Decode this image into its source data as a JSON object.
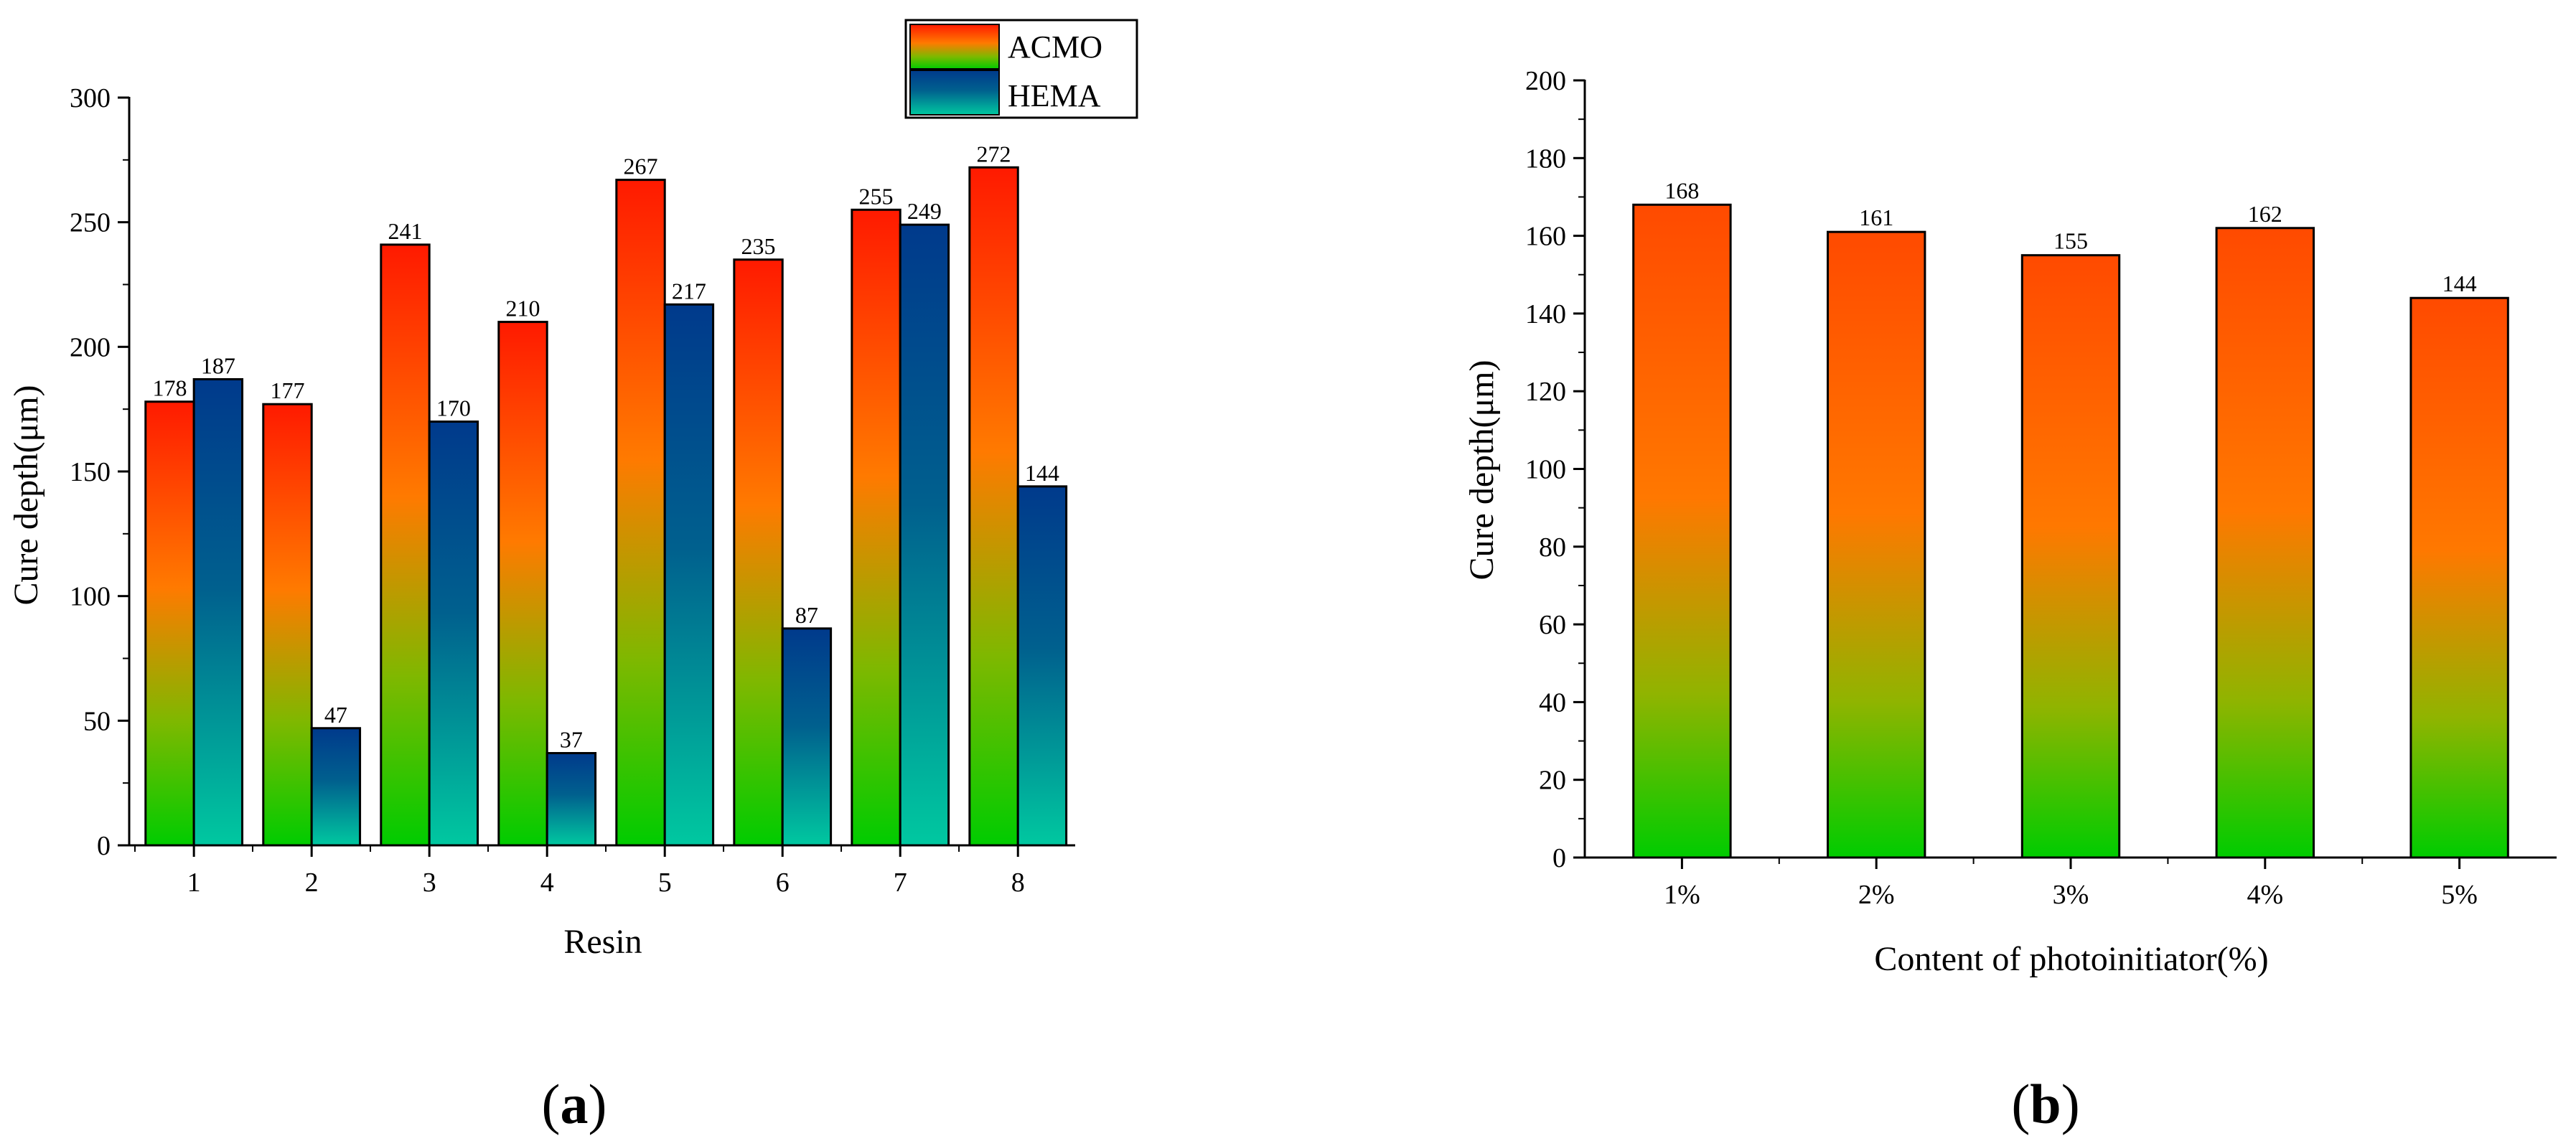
{
  "chart_data": [
    {
      "type": "bar",
      "panel_label": {
        "open": "(",
        "letter": "a",
        "close": ")"
      },
      "xlabel": "Resin",
      "ylabel": "Cure depth(μm)",
      "categories": [
        "1",
        "2",
        "3",
        "4",
        "5",
        "6",
        "7",
        "8"
      ],
      "series": [
        {
          "name": "ACMO",
          "values": [
            178,
            177,
            241,
            210,
            267,
            235,
            255,
            272
          ]
        },
        {
          "name": "HEMA",
          "values": [
            187,
            47,
            170,
            37,
            217,
            87,
            249,
            144
          ]
        }
      ],
      "ylim": [
        0,
        300
      ],
      "yticks": [
        0,
        50,
        100,
        150,
        200,
        250,
        300
      ],
      "legend_position": "top-right",
      "grid": false
    },
    {
      "type": "bar",
      "panel_label": {
        "open": "(",
        "letter": "b",
        "close": ")"
      },
      "xlabel": "Content of photoinitiator(%)",
      "ylabel": "Cure depth(μm)",
      "categories": [
        "1%",
        "2%",
        "3%",
        "4%",
        "5%"
      ],
      "values": [
        168,
        161,
        155,
        162,
        144
      ],
      "ylim": [
        0,
        200
      ],
      "yticks": [
        0,
        20,
        40,
        60,
        80,
        100,
        120,
        140,
        160,
        180,
        200
      ],
      "grid": false
    }
  ],
  "colors": {
    "acmo_top": "#ff1a00",
    "acmo_mid": "#ff7a00",
    "acmo_low": "#7fb800",
    "acmo_bottom": "#00cc00",
    "hema_top": "#003a8c",
    "hema_mid": "#00608e",
    "hema_bottom": "#00c8a0",
    "b_top": "#ff4a00",
    "b_mid": "#ff7800",
    "b_low": "#90b400",
    "b_bottom": "#00cc00",
    "outline": "#000000"
  }
}
